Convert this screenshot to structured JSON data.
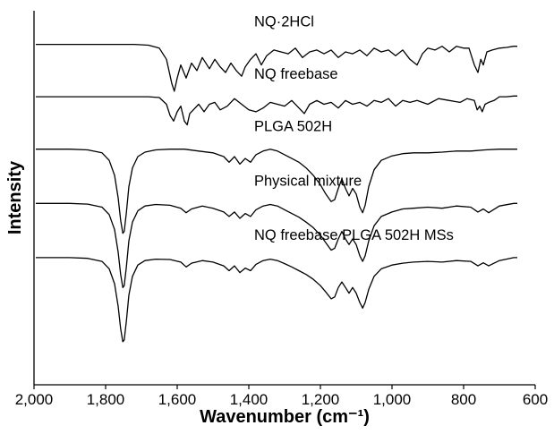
{
  "chart_data": {
    "type": "line",
    "xlabel": "Wavenumber (cm⁻¹)",
    "ylabel": "Intensity",
    "xlim": [
      2000,
      600
    ],
    "x_reversed": true,
    "x_ticks": [
      "2,000",
      "1,800",
      "1,600",
      "1,400",
      "1,200",
      "1,000",
      "800",
      "600"
    ],
    "x_tick_values": [
      2000,
      1800,
      1600,
      1400,
      1200,
      1000,
      800,
      600
    ],
    "ylim": [
      0,
      10
    ],
    "y_ticks_shown": false,
    "grid": false,
    "line_color": "#000000",
    "series": [
      {
        "name": "NQ·2HCl",
        "baseline": 9.1,
        "x": [
          1995,
          1900,
          1800,
          1720,
          1680,
          1650,
          1630,
          1615,
          1608,
          1600,
          1590,
          1575,
          1560,
          1545,
          1530,
          1510,
          1495,
          1480,
          1465,
          1450,
          1435,
          1420,
          1410,
          1395,
          1380,
          1365,
          1350,
          1330,
          1310,
          1290,
          1270,
          1250,
          1230,
          1210,
          1190,
          1170,
          1150,
          1130,
          1110,
          1090,
          1070,
          1050,
          1030,
          1010,
          990,
          970,
          950,
          930,
          915,
          900,
          880,
          860,
          840,
          820,
          800,
          785,
          770,
          760,
          752,
          745,
          735,
          720,
          700,
          680,
          660,
          650
        ],
        "y": [
          9.1,
          9.1,
          9.1,
          9.1,
          9.08,
          9.0,
          8.7,
          8.05,
          7.85,
          8.2,
          8.55,
          8.2,
          8.6,
          8.4,
          8.75,
          8.45,
          8.7,
          8.5,
          8.35,
          8.6,
          8.4,
          8.25,
          8.5,
          8.7,
          8.85,
          8.55,
          8.8,
          8.95,
          8.9,
          8.85,
          9.0,
          8.75,
          8.9,
          8.95,
          8.85,
          8.95,
          8.75,
          8.9,
          8.85,
          8.95,
          8.8,
          9.0,
          8.9,
          8.95,
          8.8,
          8.95,
          8.7,
          8.55,
          8.85,
          9.0,
          8.95,
          9.05,
          8.9,
          9.05,
          9.0,
          9.0,
          8.55,
          8.35,
          8.7,
          8.55,
          8.9,
          8.95,
          9.0,
          9.02,
          9.05,
          9.05
        ]
      },
      {
        "name": "NQ freebase",
        "baseline": 7.7,
        "x": [
          1995,
          1900,
          1800,
          1720,
          1680,
          1650,
          1630,
          1620,
          1610,
          1600,
          1590,
          1580,
          1572,
          1565,
          1555,
          1540,
          1525,
          1510,
          1495,
          1480,
          1460,
          1440,
          1420,
          1400,
          1380,
          1360,
          1340,
          1320,
          1300,
          1280,
          1260,
          1245,
          1230,
          1210,
          1190,
          1170,
          1150,
          1130,
          1110,
          1090,
          1070,
          1050,
          1030,
          1010,
          990,
          970,
          950,
          930,
          900,
          870,
          840,
          810,
          790,
          770,
          762,
          755,
          748,
          740,
          730,
          715,
          700,
          680,
          660,
          650
        ],
        "y": [
          7.7,
          7.7,
          7.7,
          7.7,
          7.7,
          7.68,
          7.5,
          7.2,
          7.05,
          7.3,
          7.45,
          7.05,
          6.95,
          7.25,
          7.35,
          7.5,
          7.3,
          7.5,
          7.55,
          7.35,
          7.45,
          7.65,
          7.5,
          7.35,
          7.3,
          7.4,
          7.55,
          7.5,
          7.45,
          7.6,
          7.4,
          7.25,
          7.5,
          7.6,
          7.5,
          7.55,
          7.4,
          7.6,
          7.5,
          7.55,
          7.45,
          7.6,
          7.55,
          7.65,
          7.45,
          7.6,
          7.55,
          7.6,
          7.5,
          7.65,
          7.6,
          7.55,
          7.65,
          7.6,
          7.35,
          7.45,
          7.3,
          7.5,
          7.55,
          7.6,
          7.7,
          7.7,
          7.72,
          7.72
        ]
      },
      {
        "name": "PLGA 502H",
        "baseline": 6.3,
        "x": [
          1995,
          1900,
          1850,
          1810,
          1790,
          1775,
          1765,
          1758,
          1752,
          1748,
          1742,
          1735,
          1725,
          1710,
          1690,
          1660,
          1620,
          1580,
          1540,
          1500,
          1470,
          1455,
          1440,
          1425,
          1410,
          1395,
          1380,
          1360,
          1340,
          1320,
          1300,
          1280,
          1260,
          1240,
          1220,
          1200,
          1185,
          1170,
          1160,
          1150,
          1140,
          1130,
          1120,
          1110,
          1100,
          1090,
          1082,
          1075,
          1065,
          1050,
          1030,
          1000,
          970,
          940,
          900,
          860,
          820,
          780,
          740,
          700,
          660,
          650
        ],
        "y": [
          6.3,
          6.3,
          6.28,
          6.2,
          6.0,
          5.6,
          5.0,
          4.4,
          4.05,
          4.1,
          4.6,
          5.3,
          5.8,
          6.1,
          6.22,
          6.28,
          6.3,
          6.3,
          6.25,
          6.2,
          6.1,
          5.95,
          6.1,
          5.9,
          6.05,
          5.95,
          6.15,
          6.25,
          6.3,
          6.25,
          6.15,
          6.05,
          5.95,
          5.8,
          5.6,
          5.35,
          5.1,
          4.9,
          4.95,
          5.25,
          5.5,
          5.25,
          5.05,
          5.25,
          5.1,
          4.75,
          4.6,
          4.8,
          5.3,
          5.75,
          6.0,
          6.12,
          6.18,
          6.2,
          6.2,
          6.22,
          6.25,
          6.25,
          6.28,
          6.3,
          6.3,
          6.3
        ]
      },
      {
        "name": "Physical mixture",
        "baseline": 4.85,
        "x": [
          1995,
          1900,
          1850,
          1810,
          1790,
          1775,
          1765,
          1758,
          1752,
          1748,
          1742,
          1735,
          1725,
          1710,
          1690,
          1660,
          1620,
          1590,
          1575,
          1560,
          1530,
          1500,
          1470,
          1455,
          1440,
          1425,
          1410,
          1395,
          1380,
          1360,
          1340,
          1320,
          1300,
          1280,
          1260,
          1240,
          1220,
          1200,
          1185,
          1170,
          1160,
          1150,
          1140,
          1130,
          1120,
          1110,
          1100,
          1090,
          1082,
          1075,
          1065,
          1050,
          1030,
          1000,
          970,
          940,
          900,
          860,
          820,
          780,
          760,
          745,
          730,
          700,
          660,
          650
        ],
        "y": [
          4.85,
          4.85,
          4.83,
          4.75,
          4.55,
          4.15,
          3.55,
          2.95,
          2.6,
          2.65,
          3.15,
          3.85,
          4.35,
          4.65,
          4.78,
          4.82,
          4.8,
          4.72,
          4.6,
          4.7,
          4.78,
          4.72,
          4.62,
          4.5,
          4.62,
          4.45,
          4.58,
          4.5,
          4.68,
          4.78,
          4.82,
          4.78,
          4.68,
          4.58,
          4.48,
          4.35,
          4.2,
          4.0,
          3.8,
          3.6,
          3.65,
          3.9,
          4.1,
          3.9,
          3.75,
          3.9,
          3.75,
          3.45,
          3.3,
          3.45,
          3.85,
          4.25,
          4.5,
          4.62,
          4.7,
          4.72,
          4.75,
          4.72,
          4.78,
          4.75,
          4.62,
          4.7,
          4.6,
          4.78,
          4.85,
          4.85
        ]
      },
      {
        "name": "NQ freebase PLGA 502H MSs",
        "baseline": 3.4,
        "x": [
          1995,
          1900,
          1850,
          1810,
          1790,
          1775,
          1765,
          1758,
          1752,
          1748,
          1742,
          1735,
          1725,
          1710,
          1690,
          1660,
          1620,
          1590,
          1575,
          1560,
          1530,
          1500,
          1470,
          1455,
          1440,
          1425,
          1410,
          1395,
          1380,
          1360,
          1340,
          1320,
          1300,
          1280,
          1260,
          1240,
          1220,
          1200,
          1185,
          1170,
          1160,
          1150,
          1140,
          1130,
          1120,
          1110,
          1100,
          1090,
          1082,
          1075,
          1065,
          1050,
          1030,
          1000,
          970,
          940,
          900,
          860,
          820,
          780,
          760,
          745,
          730,
          700,
          660,
          650
        ],
        "y": [
          3.4,
          3.4,
          3.38,
          3.3,
          3.1,
          2.7,
          2.1,
          1.5,
          1.15,
          1.2,
          1.7,
          2.4,
          2.9,
          3.2,
          3.32,
          3.36,
          3.35,
          3.28,
          3.15,
          3.25,
          3.32,
          3.28,
          3.18,
          3.05,
          3.18,
          3.0,
          3.12,
          3.05,
          3.22,
          3.32,
          3.36,
          3.32,
          3.24,
          3.15,
          3.05,
          2.95,
          2.82,
          2.65,
          2.48,
          2.3,
          2.35,
          2.6,
          2.75,
          2.6,
          2.45,
          2.6,
          2.45,
          2.2,
          2.05,
          2.2,
          2.55,
          2.9,
          3.1,
          3.2,
          3.25,
          3.28,
          3.3,
          3.28,
          3.32,
          3.3,
          3.18,
          3.26,
          3.18,
          3.32,
          3.4,
          3.4
        ]
      }
    ]
  }
}
